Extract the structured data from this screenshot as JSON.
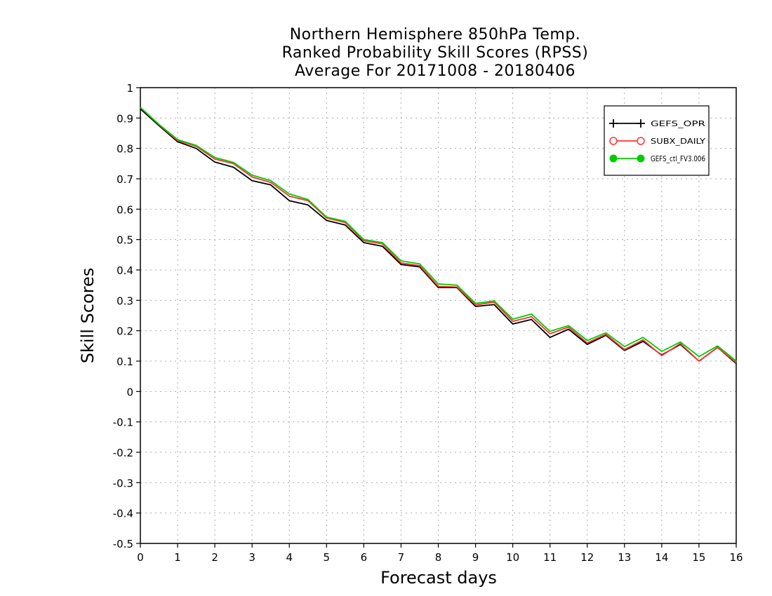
{
  "chart_data": {
    "type": "line",
    "title_lines": [
      "Northern Hemisphere 850hPa Temp.",
      "Ranked Probability Skill Scores (RPSS)",
      "Average For 20171008 - 20180406"
    ],
    "xlabel": "Forecast days",
    "ylabel": "Skill Scores",
    "xlim": [
      0,
      16
    ],
    "ylim": [
      -0.5,
      1
    ],
    "xticks": [
      "0",
      "1",
      "2",
      "3",
      "4",
      "5",
      "6",
      "7",
      "8",
      "9",
      "10",
      "11",
      "12",
      "13",
      "14",
      "15",
      "16"
    ],
    "yticks": [
      "-0.5",
      "-0.4",
      "-0.3",
      "-0.2",
      "-0.1",
      "0",
      "0.1",
      "0.2",
      "0.3",
      "0.4",
      "0.5",
      "0.6",
      "0.7",
      "0.8",
      "0.9",
      "1"
    ],
    "grid": true,
    "legend_position": "top-right",
    "x": [
      0,
      0.5,
      1,
      1.5,
      2,
      2.5,
      3,
      3.5,
      4,
      4.5,
      5,
      5.5,
      6,
      6.5,
      7,
      7.5,
      8,
      8.5,
      9,
      9.5,
      10,
      10.5,
      11,
      11.5,
      12,
      12.5,
      13,
      13.5,
      14,
      14.5,
      15,
      15.5,
      16
    ],
    "series": [
      {
        "name": "GEFS_OPR",
        "color": "#000000",
        "marker": "plus",
        "values": [
          0.93,
          0.875,
          0.822,
          0.8,
          0.755,
          0.738,
          0.694,
          0.68,
          0.628,
          0.614,
          0.563,
          0.548,
          0.49,
          0.478,
          0.418,
          0.41,
          0.342,
          0.342,
          0.28,
          0.286,
          0.222,
          0.237,
          0.178,
          0.205,
          0.155,
          0.185,
          0.135,
          0.165,
          0.12,
          0.155,
          0.1,
          0.145,
          0.092
        ]
      },
      {
        "name": "SUBX_DAILY",
        "color": "#ff3333",
        "marker": "circle-open",
        "values": [
          0.935,
          0.878,
          0.826,
          0.807,
          0.765,
          0.75,
          0.706,
          0.688,
          0.643,
          0.628,
          0.571,
          0.556,
          0.496,
          0.486,
          0.423,
          0.414,
          0.346,
          0.344,
          0.285,
          0.294,
          0.231,
          0.246,
          0.19,
          0.212,
          0.16,
          0.188,
          0.138,
          0.17,
          0.118,
          0.158,
          0.1,
          0.145,
          0.095
        ]
      },
      {
        "name": "GEFS_ctl_FV3.006",
        "color": "#00cc00",
        "marker": "circle-filled",
        "values": [
          0.935,
          0.879,
          0.829,
          0.81,
          0.77,
          0.754,
          0.712,
          0.694,
          0.65,
          0.632,
          0.574,
          0.56,
          0.5,
          0.49,
          0.43,
          0.42,
          0.354,
          0.35,
          0.29,
          0.298,
          0.238,
          0.255,
          0.198,
          0.217,
          0.168,
          0.193,
          0.148,
          0.178,
          0.132,
          0.163,
          0.115,
          0.15,
          0.1
        ]
      }
    ]
  }
}
